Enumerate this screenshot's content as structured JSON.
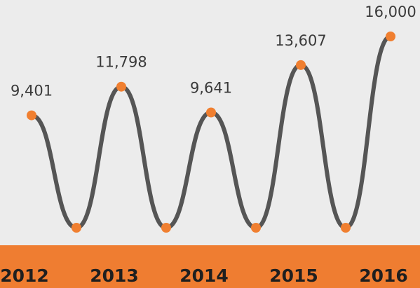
{
  "chart_data": {
    "type": "line",
    "categories": [
      "2012",
      null,
      "2013",
      null,
      "2014",
      null,
      "2015",
      null,
      "2016"
    ],
    "series": [
      {
        "color": "#555555",
        "marker_color": "#f07f30",
        "values": [
          9401,
          0,
          11798,
          0,
          9641,
          0,
          13607,
          0,
          16000
        ],
        "value_labels": [
          "9,401",
          null,
          "11,798",
          null,
          "9,641",
          null,
          "13,607",
          null,
          "16,000"
        ]
      }
    ],
    "ylim": [
      0,
      16000
    ],
    "band_color": "#ef7d31"
  }
}
